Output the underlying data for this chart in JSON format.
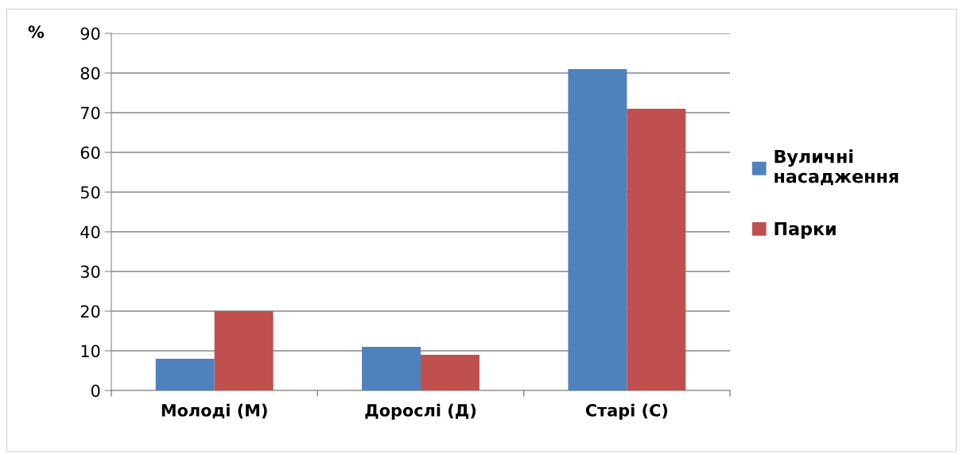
{
  "chart_data": {
    "type": "bar",
    "ylabel": "%",
    "categories": [
      "Молоді (М)",
      "Дорослі (Д)",
      "Старі (С)"
    ],
    "series": [
      {
        "name": "Вуличні\nнасадження",
        "color": "#4f81bd",
        "values": [
          8,
          11,
          81
        ]
      },
      {
        "name": "Парки",
        "color": "#c0504d",
        "values": [
          20,
          9,
          71
        ]
      }
    ],
    "ylim": [
      0,
      90
    ],
    "yticks": [
      0,
      10,
      20,
      30,
      40,
      50,
      60,
      70,
      80,
      90
    ],
    "grid": "y",
    "legend": "right"
  }
}
